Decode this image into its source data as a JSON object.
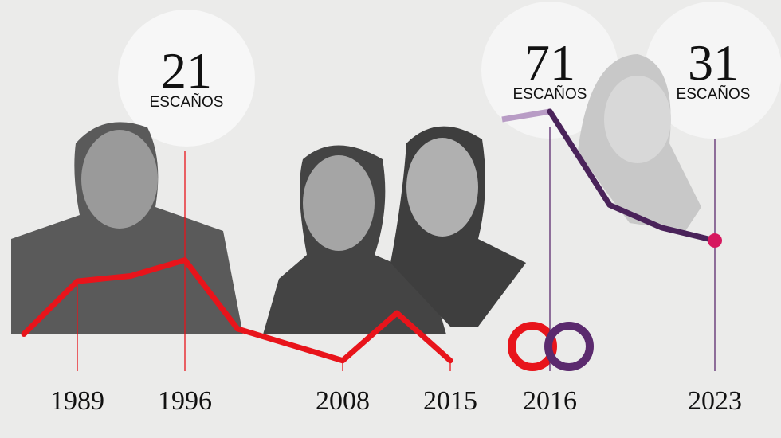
{
  "chart_data": [
    {
      "type": "line",
      "categories": [
        null,
        "1989",
        null,
        "1996",
        null,
        null,
        "2008",
        null,
        "2015"
      ],
      "values": [
        7,
        17,
        18,
        21,
        8,
        5,
        2,
        11,
        2
      ],
      "color": "#e8141b",
      "ylim": [
        0,
        25
      ],
      "value_unit": "ESCAÑOS"
    },
    {
      "type": "line",
      "categories": [
        "2016",
        null,
        null,
        "2023"
      ],
      "values": [
        71,
        42,
        35,
        31
      ],
      "color": "#4a235a",
      "ylim": [
        0,
        80
      ],
      "value_unit": "ESCAÑOS"
    }
  ]
}
